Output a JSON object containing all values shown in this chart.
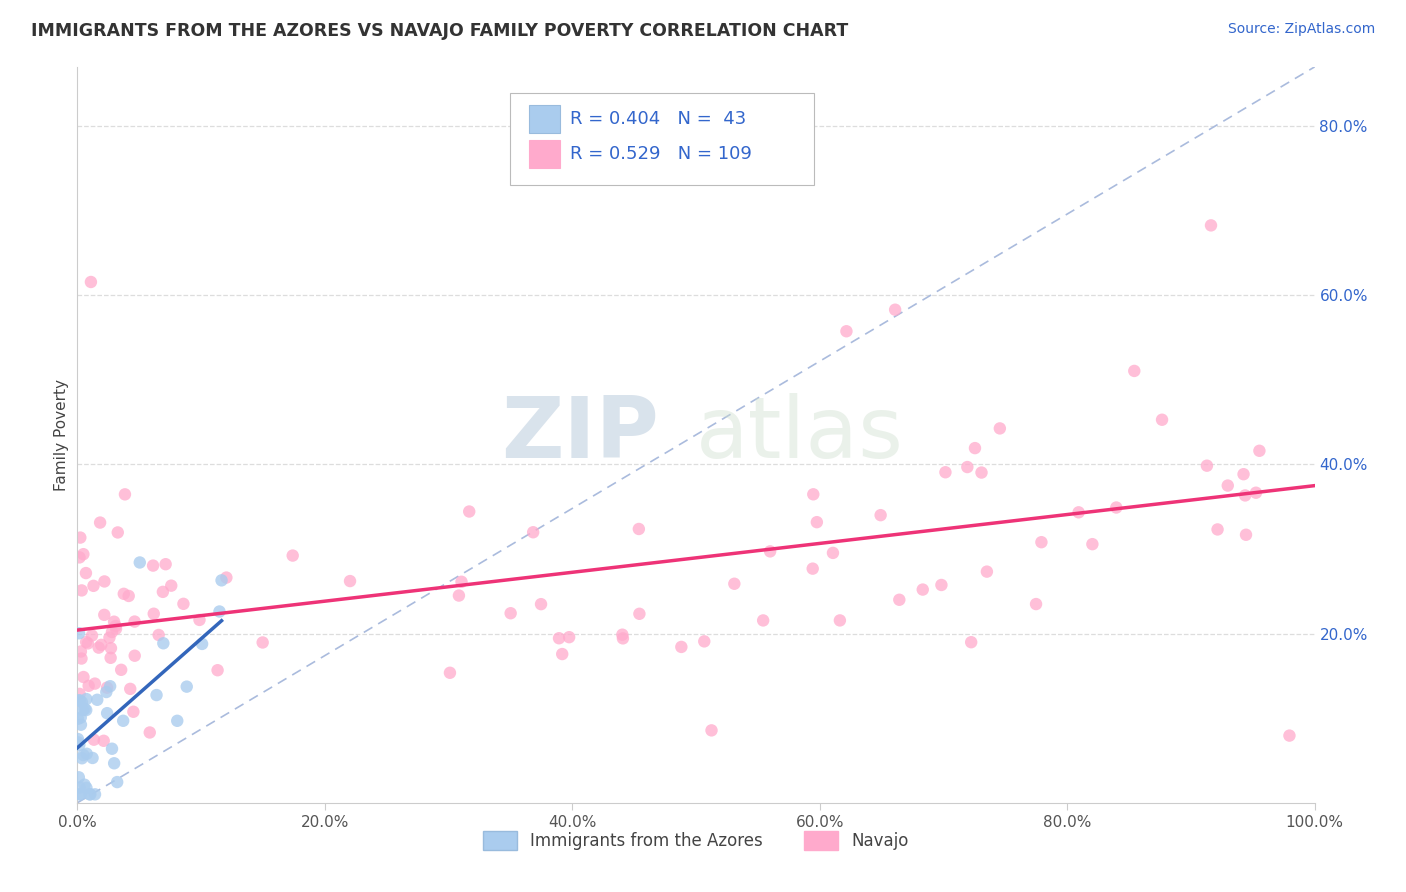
{
  "title": "IMMIGRANTS FROM THE AZORES VS NAVAJO FAMILY POVERTY CORRELATION CHART",
  "source_text": "Source: ZipAtlas.com",
  "ylabel": "Family Poverty",
  "xlim": [
    0.0,
    1.0
  ],
  "ylim": [
    0.0,
    0.87
  ],
  "x_tick_labels": [
    "0.0%",
    "20.0%",
    "40.0%",
    "60.0%",
    "80.0%",
    "100.0%"
  ],
  "y_ticks_right": [
    0.2,
    0.4,
    0.6,
    0.8
  ],
  "y_tick_labels_right": [
    "20.0%",
    "40.0%",
    "60.0%",
    "80.0%"
  ],
  "legend_blue_r": "0.404",
  "legend_blue_n": "43",
  "legend_pink_r": "0.529",
  "legend_pink_n": "109",
  "blue_scatter_color": "#AACCEE",
  "pink_scatter_color": "#FFAACC",
  "blue_line_color": "#3366BB",
  "pink_line_color": "#EE3377",
  "ref_line_color": "#AABBDD",
  "text_color": "#3366CC",
  "axis_text_color": "#555555",
  "watermark_color": "#CCDDED",
  "watermark": "ZIPatlas",
  "legend_xlabel": "Immigrants from the Azores",
  "legend_navajo": "Navajo"
}
